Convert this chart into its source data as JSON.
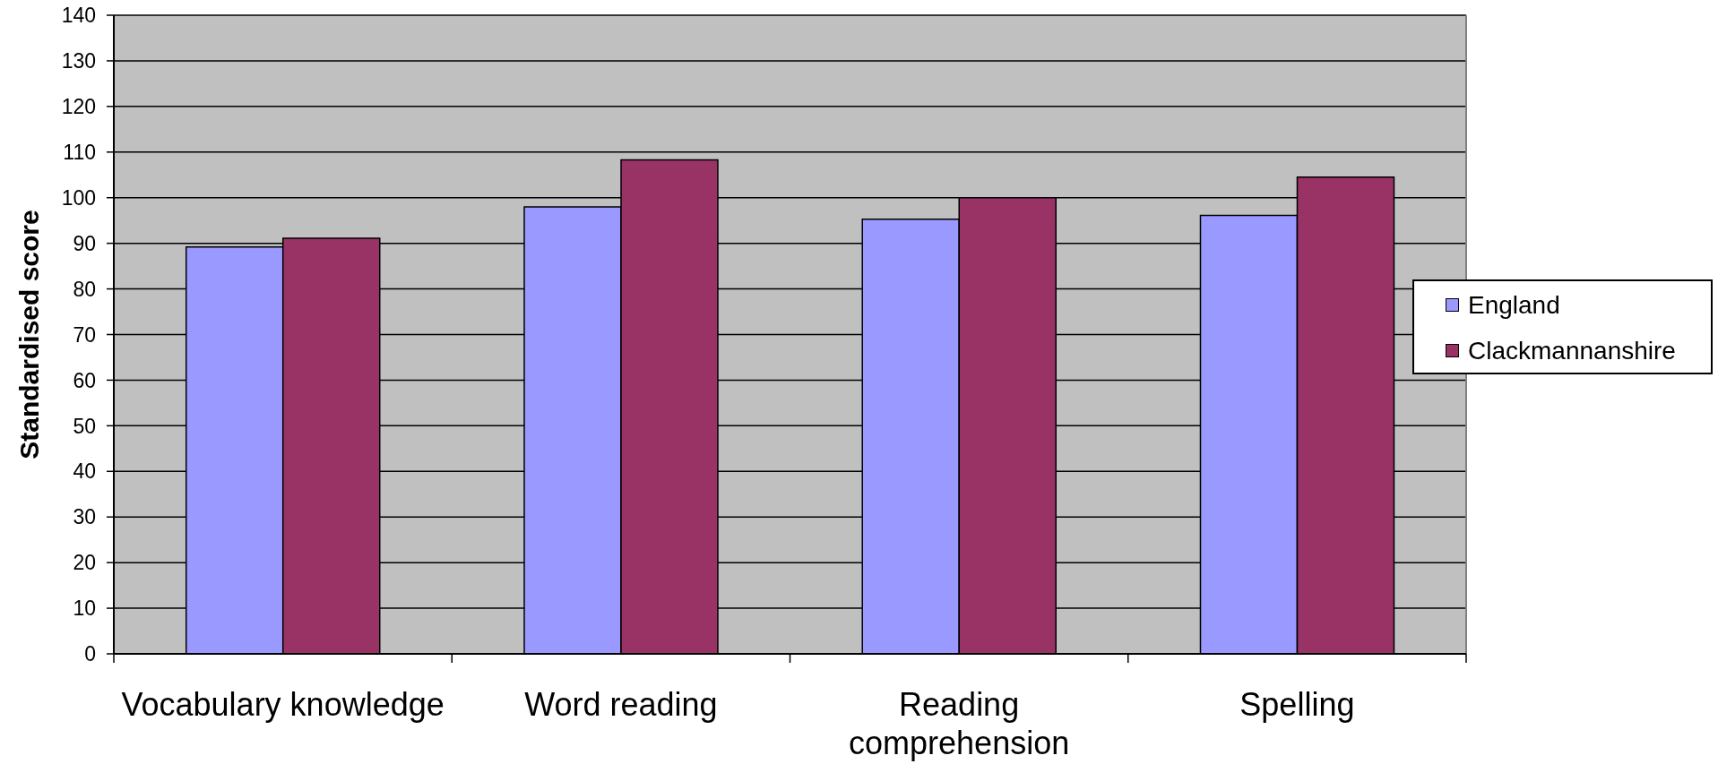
{
  "chart_data": {
    "type": "bar",
    "categories": [
      "Vocabulary knowledge",
      "Word reading",
      "Reading comprehension",
      "Spelling"
    ],
    "series": [
      {
        "name": "England",
        "color": "#9999ff",
        "values": [
          89.2,
          98.0,
          95.3,
          96.1
        ]
      },
      {
        "name": "Clackmannanshire",
        "color": "#993366",
        "values": [
          91.1,
          108.3,
          100,
          104.5
        ]
      }
    ],
    "ylabel": "Standardised score",
    "ylim": [
      0,
      140
    ],
    "yticks": [
      0,
      10,
      20,
      30,
      40,
      50,
      60,
      70,
      80,
      90,
      100,
      110,
      120,
      130,
      140
    ],
    "grid": "y",
    "legend": "right"
  }
}
